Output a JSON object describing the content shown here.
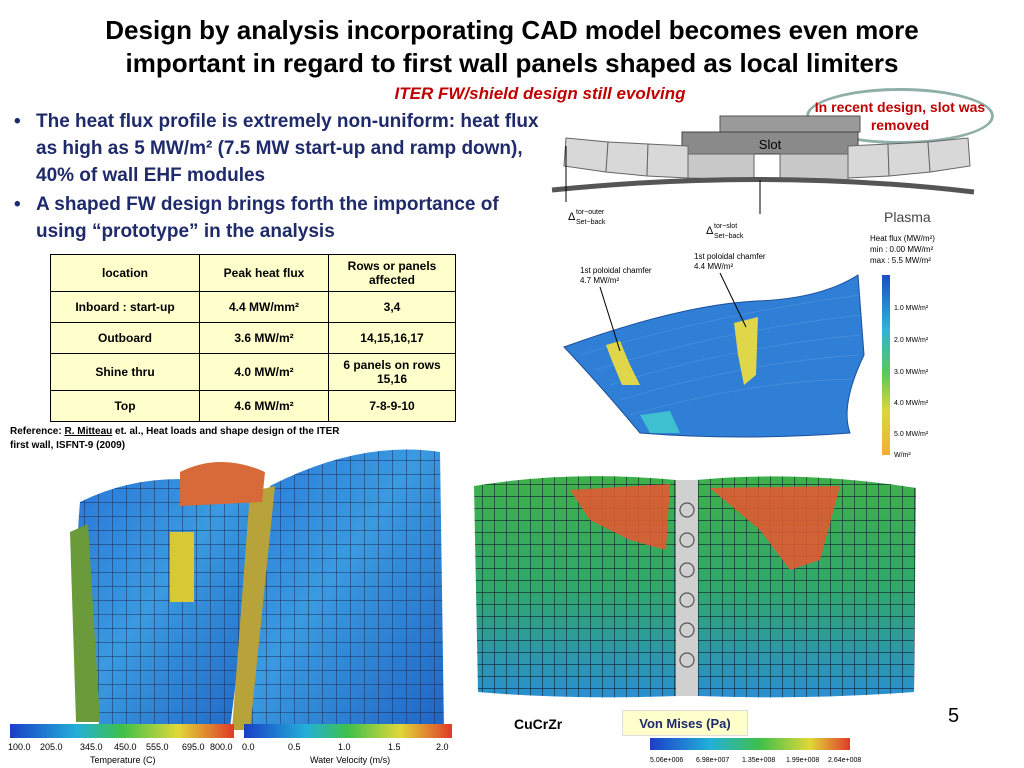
{
  "title_lines": [
    "Design by analysis incorporating CAD model becomes even more",
    "important in regard to first wall panels shaped as local limiters"
  ],
  "subtitle": "ITER FW/shield design still evolving",
  "callout": "In recent design, slot was removed",
  "bullets": [
    "The heat flux profile is extremely non-uniform: heat flux as high as 5 MW/m² (7.5 MW start-up and ramp down), 40% of wall EHF modules",
    "A shaped FW design brings forth the importance of using “prototype” in the analysis"
  ],
  "table": {
    "headers": [
      "location",
      "Peak heat flux",
      "Rows or panels affected"
    ],
    "rows": [
      [
        "Inboard : start-up",
        "4.4 MW/mm²",
        "3,4"
      ],
      [
        "Outboard",
        "3.6 MW/m²",
        "14,15,16,17"
      ],
      [
        "Shine thru",
        "4.0 MW/m²",
        "6 panels on rows 15,16"
      ],
      [
        "Top",
        "4.6 MW/m²",
        "7-8-9-10"
      ]
    ]
  },
  "reference": {
    "prefix": "Reference: ",
    "author": "R. Mitteau",
    "rest": " et. al., Heat loads and shape design of the ITER first wall, ISFNT-9 (2009)"
  },
  "diagram": {
    "slot": "Slot",
    "plasma": "Plasma",
    "delta_outer": "Δ",
    "delta_outer_sup": "tor−outer",
    "delta_outer_sub": "Set−back",
    "delta_slot": "Δ",
    "delta_slot_sup": "tor−slot",
    "delta_slot_sub": "Set−back"
  },
  "heatflux_plot": {
    "legend_title": "Heat flux (MW/m²)",
    "min": "min : 0.00 MW/m²",
    "max": "max : 5.5 MW/m²",
    "chamfer1": [
      "1st poloidal chamfer",
      "4.7 MW/m²"
    ],
    "chamfer2": [
      "1st poloidal chamfer",
      "4.4 MW/m²"
    ],
    "ticks": [
      "1.0 MW/m²",
      "2.0 MW/m²",
      "3.0 MW/m²",
      "4.0 MW/m²",
      "5.0 MW/m²",
      "W/m²"
    ]
  },
  "temperature_bar": {
    "ticks": [
      "100.0",
      "205.0",
      "345.0",
      "450.0",
      "555.0",
      "695.0",
      "800.0"
    ],
    "label": "Temperature (C)"
  },
  "velocity_bar": {
    "ticks": [
      "0.0",
      "0.5",
      "1.0",
      "1.5",
      "2.0"
    ],
    "label": "Water Velocity (m/s)"
  },
  "stress_bar": {
    "ticks": [
      "5.06e+006",
      "6.98e+007",
      "1.35e+008",
      "1.99e+008",
      "2.64e+008"
    ]
  },
  "cucrzr": "CuCrZr",
  "von_mises": "Von Mises (Pa)",
  "page_number": "5",
  "colors": {
    "title": "#000000",
    "subtitle": "#c00000",
    "bullet_text": "#1f2a6b",
    "table_bg": "#ffffcc"
  }
}
